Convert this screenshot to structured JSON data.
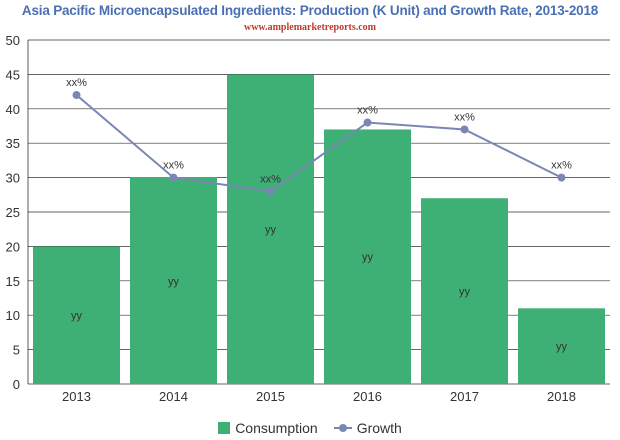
{
  "title": "Asia Pacific Microencapsulated Ingredients: Production (K Unit) and Growth Rate, 2013-2018",
  "subtitle": "www.amplemarketreports.com",
  "colors": {
    "title": "#4a6fb3",
    "subtitle": "#c0392b",
    "bar": "#3fb075",
    "line": "#7b86b5",
    "grid": "#333333",
    "axis_text": "#333333"
  },
  "chart_data": {
    "type": "bar",
    "categories": [
      "2013",
      "2014",
      "2015",
      "2016",
      "2017",
      "2018"
    ],
    "series": [
      {
        "name": "Consumption",
        "type": "bar",
        "values": [
          20,
          30,
          45,
          37,
          27,
          11
        ],
        "labels": [
          "yy",
          "yy",
          "yy",
          "yy",
          "yy",
          "yy"
        ]
      },
      {
        "name": "Growth",
        "type": "line",
        "values": [
          42,
          30,
          28,
          38,
          37,
          30
        ],
        "labels": [
          "xx%",
          "xx%",
          "xx%",
          "xx%",
          "xx%",
          "xx%"
        ]
      }
    ],
    "ylim": [
      0,
      50
    ],
    "yticks": [
      0,
      5,
      10,
      15,
      20,
      25,
      30,
      35,
      40,
      45,
      50
    ],
    "grid": true,
    "legend": "bottom-center"
  }
}
